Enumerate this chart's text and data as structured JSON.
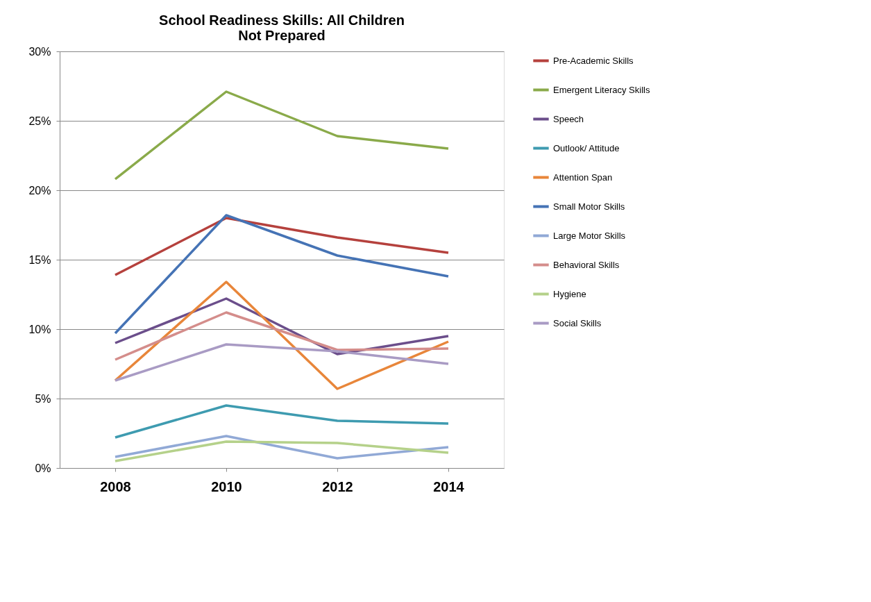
{
  "chart_data": {
    "type": "line",
    "title": "School Readiness Skills:  All Children\nNot Prepared",
    "categories": [
      "2008",
      "2010",
      "2012",
      "2014"
    ],
    "series": [
      {
        "name": "Pre-Academic Skills",
        "color": "#b5413d",
        "values": [
          13.9,
          18.0,
          16.6,
          15.5
        ]
      },
      {
        "name": "Emergent Literacy Skills",
        "color": "#8aaa4a",
        "values": [
          20.8,
          27.1,
          23.9,
          23.0
        ]
      },
      {
        "name": "Speech",
        "color": "#6b4e8b",
        "values": [
          9.0,
          12.2,
          8.2,
          9.5
        ]
      },
      {
        "name": "Outlook/  Attitude",
        "color": "#3e9bb0",
        "values": [
          2.2,
          4.5,
          3.4,
          3.2
        ]
      },
      {
        "name": "Attention Span",
        "color": "#e8863a",
        "values": [
          6.3,
          13.4,
          5.7,
          9.1
        ]
      },
      {
        "name": "Small Motor Skills",
        "color": "#4573b5",
        "values": [
          9.7,
          18.2,
          15.3,
          13.8
        ]
      },
      {
        "name": "Large Motor  Skills",
        "color": "#91a9d6",
        "values": [
          0.8,
          2.3,
          0.7,
          1.5
        ]
      },
      {
        "name": "Behavioral Skills",
        "color": "#d48d8b",
        "values": [
          7.8,
          11.2,
          8.5,
          8.6
        ]
      },
      {
        "name": "Hygiene",
        "color": "#b5d18a",
        "values": [
          0.5,
          1.9,
          1.8,
          1.1
        ]
      },
      {
        "name": "Social Skills",
        "color": "#a99bc4",
        "values": [
          6.3,
          8.9,
          8.4,
          7.5
        ]
      }
    ],
    "ylim": [
      0,
      30
    ],
    "yticks": [
      {
        "value": 0,
        "label": "0%"
      },
      {
        "value": 5,
        "label": "5%"
      },
      {
        "value": 10,
        "label": "10%"
      },
      {
        "value": 15,
        "label": "15%"
      },
      {
        "value": 20,
        "label": "20%"
      },
      {
        "value": 25,
        "label": "25%"
      },
      {
        "value": 30,
        "label": "30%"
      }
    ],
    "grid": "y",
    "legend": "right",
    "marker": "none",
    "line_style": "solid"
  }
}
